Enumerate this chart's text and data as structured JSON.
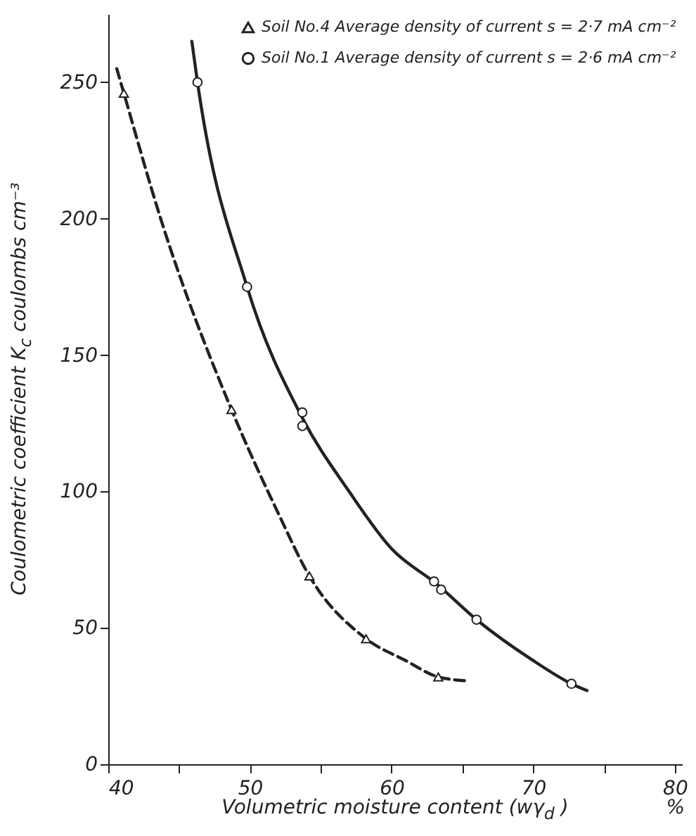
{
  "chart_data": {
    "type": "scatter",
    "xlabel": "Volumetric moisture content (wγ$_{d}$ )",
    "ylabel": "Coulometric coefficient K$_{c}$   coulombs cm⁻³",
    "annotations": [
      "%"
    ],
    "xlim": [
      40,
      80.5
    ],
    "ylim": [
      0,
      275
    ],
    "xticks": [
      40,
      {
        "value": 45,
        "label": null
      },
      50,
      {
        "value": 55,
        "label": null
      },
      60,
      {
        "value": 65,
        "label": null
      },
      70,
      {
        "value": 75,
        "label": null
      },
      80
    ],
    "yticks": [
      0,
      50,
      100,
      150,
      200,
      250
    ],
    "legend": "top right",
    "series": [
      {
        "name": "Soil No.4 Average density of current s = 2·7 mA cm⁻²",
        "marker": "triangle",
        "color": "#222222",
        "x": [
          41.1,
          48.7,
          54.2,
          58.2,
          63.3
        ],
        "values": [
          246,
          130,
          69,
          46,
          32
        ]
      },
      {
        "type": "line",
        "line_style": "dashed",
        "color": "#222222",
        "x": [
          40.6,
          41.1,
          43.7,
          48.7,
          52,
          54.2,
          58.2,
          61,
          63.3,
          65.5
        ],
        "values": [
          255,
          246,
          200,
          130,
          92,
          69,
          46,
          38,
          32,
          30.5
        ]
      },
      {
        "name": "Soil No.1 Average density of current s = 2·6 mA cm⁻²",
        "marker": "circle",
        "color": "#222222",
        "x": [
          46.3,
          49.8,
          53.7,
          53.7,
          63.0,
          63.5,
          66.0,
          72.7
        ],
        "values": [
          250,
          175,
          129,
          124,
          67,
          64,
          53,
          29.5
        ]
      },
      {
        "type": "line",
        "line_style": "solid",
        "color": "#222222",
        "x": [
          45.9,
          46.3,
          49.8,
          53.7,
          57,
          60,
          63.2,
          66,
          70,
          72.7,
          73.8
        ],
        "values": [
          265,
          250,
          175,
          127,
          100,
          79,
          66,
          53,
          38,
          29.5,
          27
        ]
      }
    ]
  }
}
